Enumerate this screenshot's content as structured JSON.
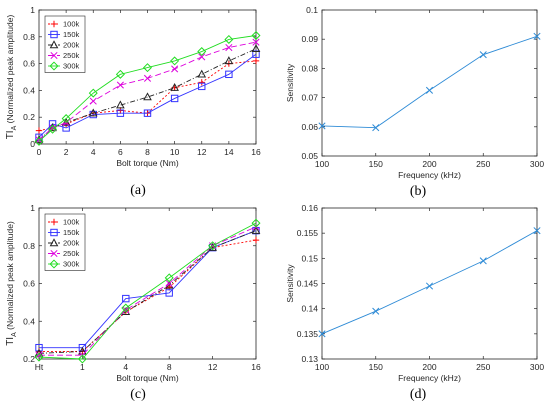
{
  "chart_data": [
    {
      "type": "line",
      "panel_label": "(a)",
      "xlabel": "Bolt torque (Nm)",
      "ylabel": "TI_A (Normalized peak amplitude)",
      "x": [
        0,
        1,
        2,
        4,
        6,
        8,
        10,
        12,
        14,
        16
      ],
      "xticks": [
        "0",
        "2",
        "4",
        "6",
        "8",
        "10",
        "12",
        "14",
        "16"
      ],
      "xlim": [
        0,
        16
      ],
      "ylim": [
        0,
        1
      ],
      "yticks": [
        "0",
        "0.2",
        "0.4",
        "0.6",
        "0.8",
        "1"
      ],
      "legend": "top-left",
      "series": [
        {
          "name": "100k",
          "color": "#ff0000",
          "dash": "2,2",
          "marker": "plus",
          "values": [
            0.1,
            0.12,
            0.15,
            0.23,
            0.25,
            0.23,
            0.42,
            0.46,
            0.6,
            0.62
          ]
        },
        {
          "name": "150k",
          "color": "#3333ff",
          "dash": "none",
          "marker": "square",
          "values": [
            0.05,
            0.15,
            0.12,
            0.22,
            0.23,
            0.23,
            0.34,
            0.43,
            0.52,
            0.67
          ]
        },
        {
          "name": "200k",
          "color": "#262626",
          "dash": "5,2,1,2",
          "marker": "triangle",
          "values": [
            0.03,
            0.12,
            0.16,
            0.23,
            0.29,
            0.35,
            0.42,
            0.52,
            0.62,
            0.71
          ]
        },
        {
          "name": "250k",
          "color": "#dd00dd",
          "dash": "6,3",
          "marker": "x",
          "values": [
            0.03,
            0.12,
            0.16,
            0.32,
            0.44,
            0.49,
            0.56,
            0.65,
            0.72,
            0.76
          ]
        },
        {
          "name": "300k",
          "color": "#22dd22",
          "dash": "none",
          "marker": "diamond",
          "values": [
            0.02,
            0.11,
            0.19,
            0.38,
            0.52,
            0.57,
            0.62,
            0.69,
            0.78,
            0.81
          ]
        }
      ]
    },
    {
      "type": "line",
      "panel_label": "(b)",
      "xlabel": "Frequency (kHz)",
      "ylabel": "Sensitivity",
      "categories": [
        "100",
        "150",
        "200",
        "250",
        "300"
      ],
      "x": [
        100,
        150,
        200,
        250,
        300
      ],
      "xlim": [
        100,
        300
      ],
      "ylim": [
        0.05,
        0.1
      ],
      "yticks": [
        "0.05",
        "0.06",
        "0.07",
        "0.08",
        "0.09",
        "0.1"
      ],
      "series": [
        {
          "color": "#2e8bd6",
          "dash": "none",
          "marker": "x",
          "values": [
            0.0603,
            0.0597,
            0.0725,
            0.0847,
            0.091
          ]
        }
      ]
    },
    {
      "type": "line",
      "panel_label": "(c)",
      "xlabel": "Bolt torque (Nm)",
      "ylabel": "TI_A (Normalized peak amplitude)",
      "categories": [
        "Ht",
        "1",
        "4",
        "8",
        "12",
        "16"
      ],
      "x": [
        0,
        1,
        2,
        3,
        4,
        5
      ],
      "xlim": [
        0,
        5
      ],
      "ylim": [
        0.2,
        1
      ],
      "yticks": [
        "0.2",
        "0.4",
        "0.6",
        "0.8",
        "1"
      ],
      "legend": "top-left",
      "series": [
        {
          "name": "100k",
          "color": "#ff0000",
          "dash": "2,2",
          "marker": "plus",
          "values": [
            0.24,
            0.24,
            0.45,
            0.58,
            0.79,
            0.83
          ]
        },
        {
          "name": "150k",
          "color": "#3333ff",
          "dash": "none",
          "marker": "square",
          "values": [
            0.26,
            0.26,
            0.52,
            0.55,
            0.79,
            0.88
          ]
        },
        {
          "name": "200k",
          "color": "#262626",
          "dash": "5,2,1,2",
          "marker": "triangle",
          "values": [
            0.23,
            0.24,
            0.45,
            0.59,
            0.79,
            0.88
          ]
        },
        {
          "name": "250k",
          "color": "#dd00dd",
          "dash": "6,3",
          "marker": "x",
          "values": [
            0.22,
            0.22,
            0.46,
            0.6,
            0.8,
            0.9
          ]
        },
        {
          "name": "300k",
          "color": "#22dd22",
          "dash": "none",
          "marker": "diamond",
          "values": [
            0.21,
            0.2,
            0.47,
            0.63,
            0.8,
            0.92
          ]
        }
      ]
    },
    {
      "type": "line",
      "panel_label": "(d)",
      "xlabel": "Frequency (kHz)",
      "ylabel": "Sensitivity",
      "categories": [
        "100",
        "150",
        "200",
        "250",
        "300"
      ],
      "x": [
        100,
        150,
        200,
        250,
        300
      ],
      "xlim": [
        100,
        300
      ],
      "ylim": [
        0.13,
        0.16
      ],
      "yticks": [
        "0.13",
        "0.135",
        "0.14",
        "0.145",
        "0.15",
        "0.155",
        "0.16"
      ],
      "series": [
        {
          "color": "#2e8bd6",
          "dash": "none",
          "marker": "x",
          "values": [
            0.135,
            0.1395,
            0.1445,
            0.1495,
            0.1555
          ]
        }
      ]
    }
  ]
}
